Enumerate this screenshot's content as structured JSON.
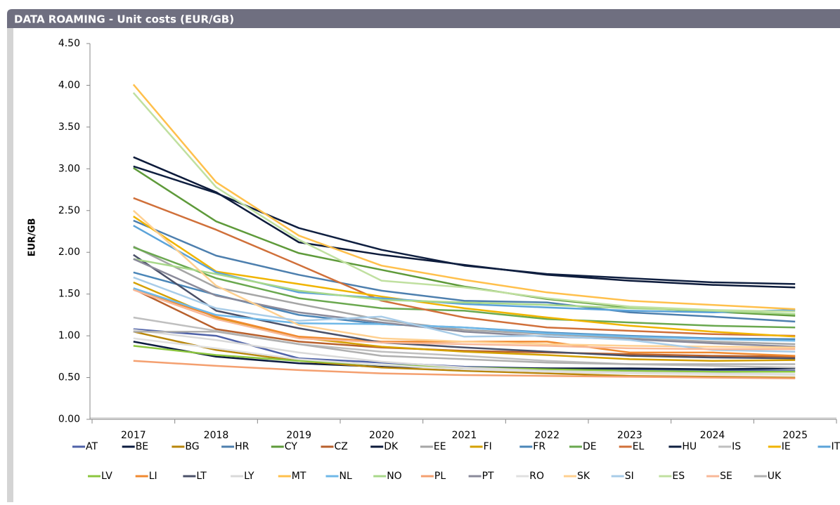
{
  "chart_data": {
    "type": "line",
    "title": "DATA ROAMING - Unit costs (EUR/GB)",
    "y_label": "EUR/GB",
    "categories": [
      "2017",
      "2018",
      "2019",
      "2020",
      "2021",
      "2022",
      "2023",
      "2024",
      "2025"
    ],
    "ylim": [
      0,
      4.5
    ],
    "yticks": [
      {
        "value": 0,
        "label": "0.00"
      },
      {
        "value": 0.5,
        "label": "0.50"
      },
      {
        "value": 1,
        "label": "1.00"
      },
      {
        "value": 1.5,
        "label": "1.50"
      },
      {
        "value": 2,
        "label": "2.00"
      },
      {
        "value": 2.5,
        "label": "2.50"
      },
      {
        "value": 3,
        "label": "3.00"
      },
      {
        "value": 3.5,
        "label": "3.50"
      },
      {
        "value": 4,
        "label": "4.00"
      },
      {
        "value": 4.5,
        "label": "4.50"
      }
    ],
    "series": [
      {
        "name": "AT",
        "color": "#4f62a8",
        "values": [
          1.08,
          1.0,
          0.73,
          0.68,
          0.63,
          0.61,
          0.6,
          0.59,
          0.58
        ]
      },
      {
        "name": "BE",
        "color": "#0b1b3f",
        "values": [
          0.93,
          0.75,
          0.67,
          0.63,
          0.62,
          0.61,
          0.61,
          0.6,
          0.61
        ]
      },
      {
        "name": "BG",
        "color": "#b8860b",
        "values": [
          1.05,
          0.83,
          0.7,
          0.62,
          0.58,
          0.55,
          0.52,
          0.51,
          0.5
        ]
      },
      {
        "name": "HR",
        "color": "#4d7fae",
        "values": [
          2.38,
          1.96,
          1.73,
          1.54,
          1.42,
          1.4,
          1.28,
          1.23,
          1.17
        ]
      },
      {
        "name": "CY",
        "color": "#5e9a3a",
        "values": [
          3.01,
          2.37,
          1.99,
          1.79,
          1.59,
          1.44,
          1.34,
          1.29,
          1.24
        ]
      },
      {
        "name": "CZ",
        "color": "#b8602c",
        "values": [
          1.56,
          1.08,
          0.93,
          0.86,
          0.82,
          0.8,
          0.78,
          0.76,
          0.75
        ]
      },
      {
        "name": "DK",
        "color": "#0c1a3a",
        "values": [
          3.14,
          2.72,
          2.12,
          1.97,
          1.85,
          1.73,
          1.66,
          1.61,
          1.58
        ]
      },
      {
        "name": "EE",
        "color": "#a6a6a6",
        "values": [
          2.07,
          1.58,
          1.38,
          1.19,
          1.07,
          1.02,
          0.97,
          0.93,
          0.9
        ]
      },
      {
        "name": "FI",
        "color": "#d4a000",
        "values": [
          1.64,
          1.22,
          0.98,
          0.87,
          0.81,
          0.77,
          0.72,
          0.7,
          0.71
        ]
      },
      {
        "name": "FR",
        "color": "#4a86b8",
        "values": [
          1.76,
          1.49,
          1.25,
          1.14,
          1.1,
          1.04,
          1.0,
          0.97,
          0.96
        ]
      },
      {
        "name": "DE",
        "color": "#6aa84f",
        "values": [
          2.06,
          1.69,
          1.45,
          1.33,
          1.3,
          1.2,
          1.16,
          1.12,
          1.1
        ]
      },
      {
        "name": "EL",
        "color": "#d0703a",
        "values": [
          2.65,
          2.27,
          1.85,
          1.42,
          1.22,
          1.1,
          1.06,
          1.02,
          1.0
        ]
      },
      {
        "name": "HU",
        "color": "#0f1f40",
        "values": [
          3.03,
          2.71,
          2.29,
          2.03,
          1.84,
          1.74,
          1.69,
          1.64,
          1.62
        ]
      },
      {
        "name": "IS",
        "color": "#bfbfbf",
        "values": [
          1.22,
          1.06,
          0.9,
          0.81,
          0.76,
          0.7,
          0.66,
          0.64,
          0.62
        ]
      },
      {
        "name": "IE",
        "color": "#f0b400",
        "values": [
          2.43,
          1.77,
          1.62,
          1.47,
          1.33,
          1.22,
          1.12,
          1.05,
          0.99
        ]
      },
      {
        "name": "IT",
        "color": "#5ba3d9",
        "values": [
          2.32,
          1.76,
          1.52,
          1.45,
          1.38,
          1.34,
          1.3,
          1.28,
          1.31
        ]
      },
      {
        "name": "LV",
        "color": "#8cc63f",
        "values": [
          0.88,
          0.77,
          0.7,
          0.65,
          0.62,
          0.6,
          0.58,
          0.57,
          0.57
        ]
      },
      {
        "name": "LI",
        "color": "#f08a30",
        "values": [
          1.56,
          1.23,
          0.99,
          0.93,
          0.93,
          0.93,
          0.8,
          0.8,
          0.76
        ]
      },
      {
        "name": "LT",
        "color": "#4a5068",
        "values": [
          1.97,
          1.3,
          1.09,
          0.92,
          0.86,
          0.81,
          0.76,
          0.74,
          0.73
        ]
      },
      {
        "name": "LY",
        "color": "#d9d9d9",
        "values": [
          1.07,
          0.95,
          0.8,
          0.69,
          0.62,
          0.58,
          0.56,
          0.55,
          0.54
        ]
      },
      {
        "name": "MT",
        "color": "#ffc04c",
        "values": [
          4.01,
          2.84,
          2.2,
          1.84,
          1.67,
          1.52,
          1.42,
          1.37,
          1.32
        ]
      },
      {
        "name": "NL",
        "color": "#6fb8e8",
        "values": [
          1.57,
          1.25,
          1.15,
          1.14,
          1.1,
          1.03,
          0.99,
          0.96,
          0.94
        ]
      },
      {
        "name": "NO",
        "color": "#a8d88a",
        "values": [
          1.92,
          1.74,
          1.54,
          1.43,
          1.4,
          1.37,
          1.33,
          1.3,
          1.26
        ]
      },
      {
        "name": "PL",
        "color": "#f4a070",
        "values": [
          0.7,
          0.64,
          0.59,
          0.55,
          0.53,
          0.52,
          0.51,
          0.5,
          0.49
        ]
      },
      {
        "name": "PT",
        "color": "#8a8a9a",
        "values": [
          1.92,
          1.48,
          1.28,
          1.16,
          1.05,
          0.99,
          0.96,
          0.91,
          0.87
        ]
      },
      {
        "name": "RO",
        "color": "#e0e0e0",
        "values": [
          0.97,
          0.85,
          0.72,
          0.65,
          0.6,
          0.57,
          0.55,
          0.54,
          0.53
        ]
      },
      {
        "name": "SK",
        "color": "#ffd090",
        "values": [
          2.5,
          1.6,
          1.13,
          0.97,
          0.93,
          0.9,
          0.88,
          0.87,
          0.86
        ]
      },
      {
        "name": "SI",
        "color": "#a8cce8",
        "values": [
          1.7,
          1.33,
          1.18,
          1.23,
          0.99,
          1.0,
          0.95,
          0.83,
          0.81
        ]
      },
      {
        "name": "ES",
        "color": "#c0e0a0",
        "values": [
          3.91,
          2.78,
          2.15,
          1.66,
          1.58,
          1.45,
          1.35,
          1.31,
          1.29
        ]
      },
      {
        "name": "SE",
        "color": "#f8b898",
        "values": [
          1.55,
          1.2,
          0.97,
          0.92,
          0.9,
          0.88,
          0.85,
          0.84,
          0.84
        ]
      },
      {
        "name": "UK",
        "color": "#b0b0b0",
        "values": [
          1.05,
          1.05,
          0.9,
          0.76,
          0.72,
          0.68,
          0.66,
          0.66,
          0.66
        ]
      }
    ]
  }
}
